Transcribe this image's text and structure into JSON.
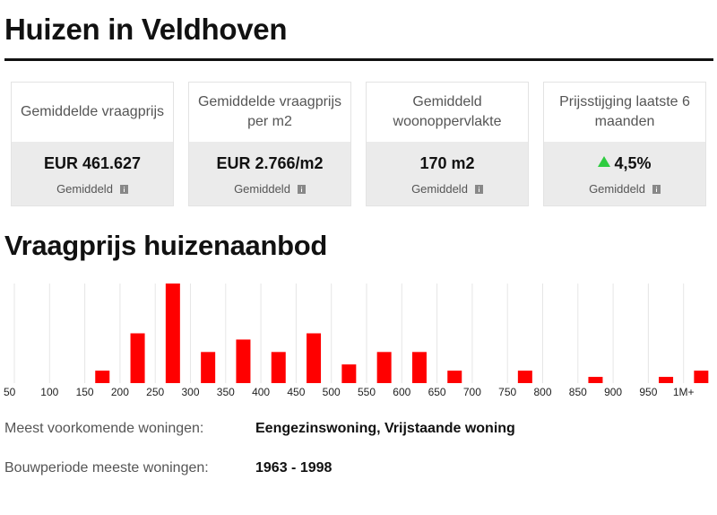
{
  "header": {
    "title": "Huizen in Veldhoven"
  },
  "stats": [
    {
      "label": "Gemiddelde vraagprijs",
      "value": "EUR 461.627",
      "sub": "Gemiddeld",
      "trend": ""
    },
    {
      "label": "Gemiddelde vraagprijs per m2",
      "value": "EUR 2.766/m2",
      "sub": "Gemiddeld",
      "trend": ""
    },
    {
      "label": "Gemiddeld woonoppervlakte",
      "value": "170 m2",
      "sub": "Gemiddeld",
      "trend": ""
    },
    {
      "label": "Prijsstijging laatste 6 maanden",
      "value": "4,5%",
      "sub": "Gemiddeld",
      "trend": "up"
    }
  ],
  "section": {
    "title": "Vraagprijs huizenaanbod"
  },
  "chart_data": {
    "type": "bar",
    "title": "",
    "xlabel": "",
    "ylabel": "",
    "tick_labels": [
      "50",
      "100",
      "150",
      "200",
      "250",
      "300",
      "350",
      "400",
      "450",
      "500",
      "550",
      "600",
      "650",
      "700",
      "750",
      "800",
      "850",
      "900",
      "950",
      "1M+"
    ],
    "categories": [
      "150-200",
      "200-250",
      "250-300",
      "300-350",
      "350-400",
      "400-450",
      "450-500",
      "500-550",
      "550-600",
      "600-650",
      "650-700",
      "700-750",
      "750-800",
      "800-850",
      "850-900",
      "900-950",
      "950-1M",
      "1M+"
    ],
    "values": [
      2,
      8,
      16,
      5,
      7,
      5,
      8,
      3,
      5,
      5,
      2,
      0,
      2,
      0,
      1,
      0,
      1,
      2
    ],
    "ylim": [
      0,
      16
    ],
    "bar_color": "#ff0000",
    "grid": "vertical"
  },
  "info": {
    "common_label": "Meest voorkomende woningen:",
    "common_value": "Eengezinswoning, Vrijstaande woning",
    "period_label": "Bouwperiode meeste woningen:",
    "period_value": "1963 - 1998"
  }
}
